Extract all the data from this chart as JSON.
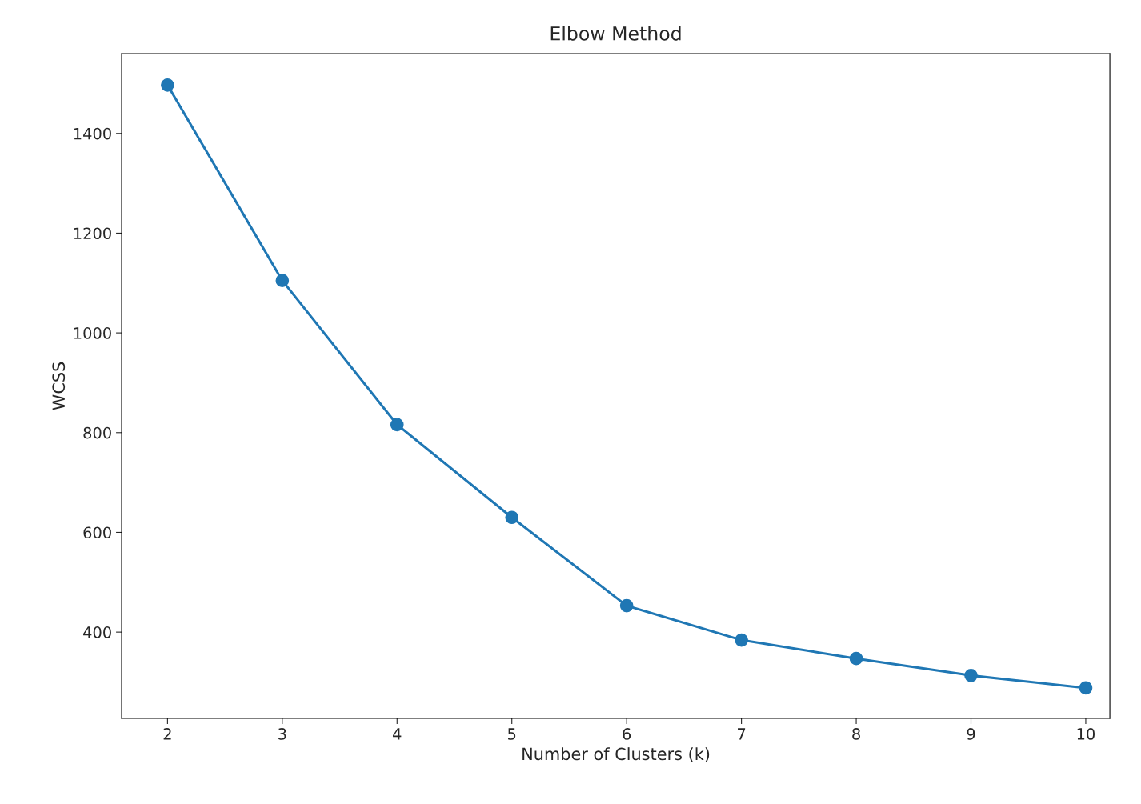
{
  "chart_data": {
    "type": "line",
    "title": "Elbow Method",
    "xlabel": "Number of Clusters (k)",
    "ylabel": "WCSS",
    "x": [
      2,
      3,
      4,
      5,
      6,
      7,
      8,
      9,
      10
    ],
    "series": [
      {
        "color": "#1f77b4",
        "values": [
          1497,
          1105,
          816,
          630,
          453,
          384,
          347,
          313,
          288
        ]
      }
    ],
    "marker": "circle",
    "line_style": "solid",
    "grid": false,
    "legend": false,
    "xlim": [
      1.6,
      10.21
    ],
    "xticks": [
      2,
      3,
      4,
      5,
      6,
      7,
      8,
      9,
      10
    ],
    "ylim": [
      227,
      1560
    ],
    "yticks": [
      400,
      600,
      800,
      1000,
      1200,
      1400
    ]
  }
}
